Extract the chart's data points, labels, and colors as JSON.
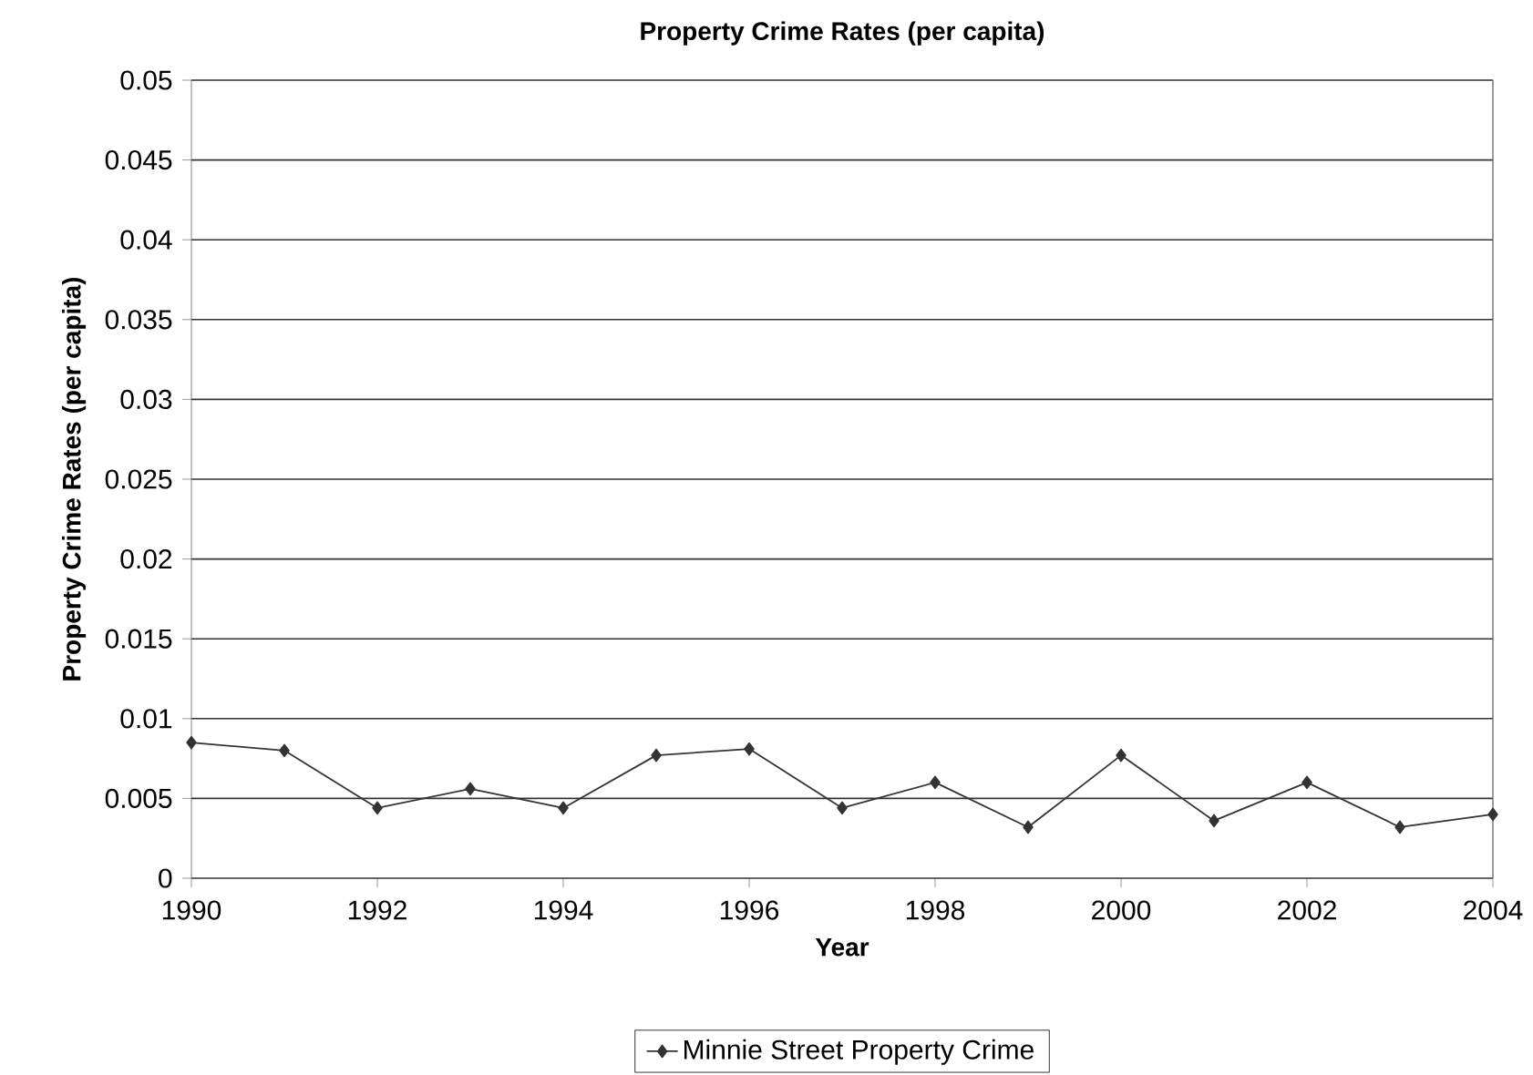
{
  "chart_data": {
    "type": "line",
    "title": "Property Crime Rates (per capita)",
    "xlabel": "Year",
    "ylabel": "Property Crime Rates (per capita)",
    "x": [
      1990,
      1991,
      1992,
      1993,
      1994,
      1995,
      1996,
      1997,
      1998,
      1999,
      2000,
      2001,
      2002,
      2003,
      2004
    ],
    "series": [
      {
        "name": "Minnie Street Property Crime",
        "color": "#333333",
        "values": [
          0.0085,
          0.008,
          0.0044,
          0.0056,
          0.0044,
          0.0077,
          0.0081,
          0.0044,
          0.006,
          0.0032,
          0.0077,
          0.0036,
          0.006,
          0.0032,
          0.004
        ]
      }
    ],
    "xlim": [
      1990,
      2004
    ],
    "xticks": [
      1990,
      1992,
      1994,
      1996,
      1998,
      2000,
      2002,
      2004
    ],
    "ylim": [
      0,
      0.05
    ],
    "yticks": [
      0,
      0.005,
      0.01,
      0.015,
      0.02,
      0.025,
      0.03,
      0.035,
      0.04,
      0.045,
      0.05
    ],
    "grid": "y",
    "legend": "bottom",
    "marker": "diamond",
    "line_style": "solid"
  }
}
